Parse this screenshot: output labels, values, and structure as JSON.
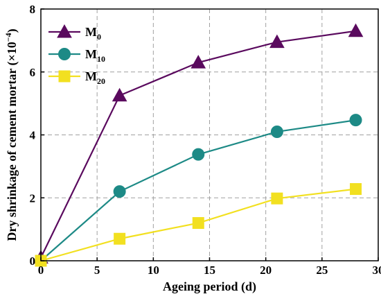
{
  "chart_data": {
    "type": "line",
    "x": [
      0,
      7,
      14,
      21,
      28
    ],
    "series": [
      {
        "name": "M",
        "name_sub": "0",
        "values": [
          0.1,
          5.25,
          6.3,
          6.95,
          7.3
        ],
        "color": "#5a0a5e",
        "marker": "triangle"
      },
      {
        "name": "M",
        "name_sub": "10",
        "values": [
          0.0,
          2.2,
          3.38,
          4.1,
          4.47
        ],
        "color": "#1d8a86",
        "marker": "circle"
      },
      {
        "name": "M",
        "name_sub": "20",
        "values": [
          0.0,
          0.7,
          1.2,
          1.98,
          2.28
        ],
        "color": "#f2e020",
        "marker": "square"
      }
    ],
    "xlabel": "Ageing period (d)",
    "ylabel_main": "Dry shrinkage of cement mortar (×10",
    "ylabel_exp": "−4",
    "ylabel_close": ")",
    "xlim": [
      0,
      30
    ],
    "ylim": [
      0,
      8
    ],
    "xticks": [
      "0",
      "5",
      "10",
      "15",
      "20",
      "25",
      "30"
    ],
    "yticks": [
      "0",
      "2",
      "4",
      "6",
      "8"
    ],
    "grid": true,
    "legend_position": "top-left"
  }
}
